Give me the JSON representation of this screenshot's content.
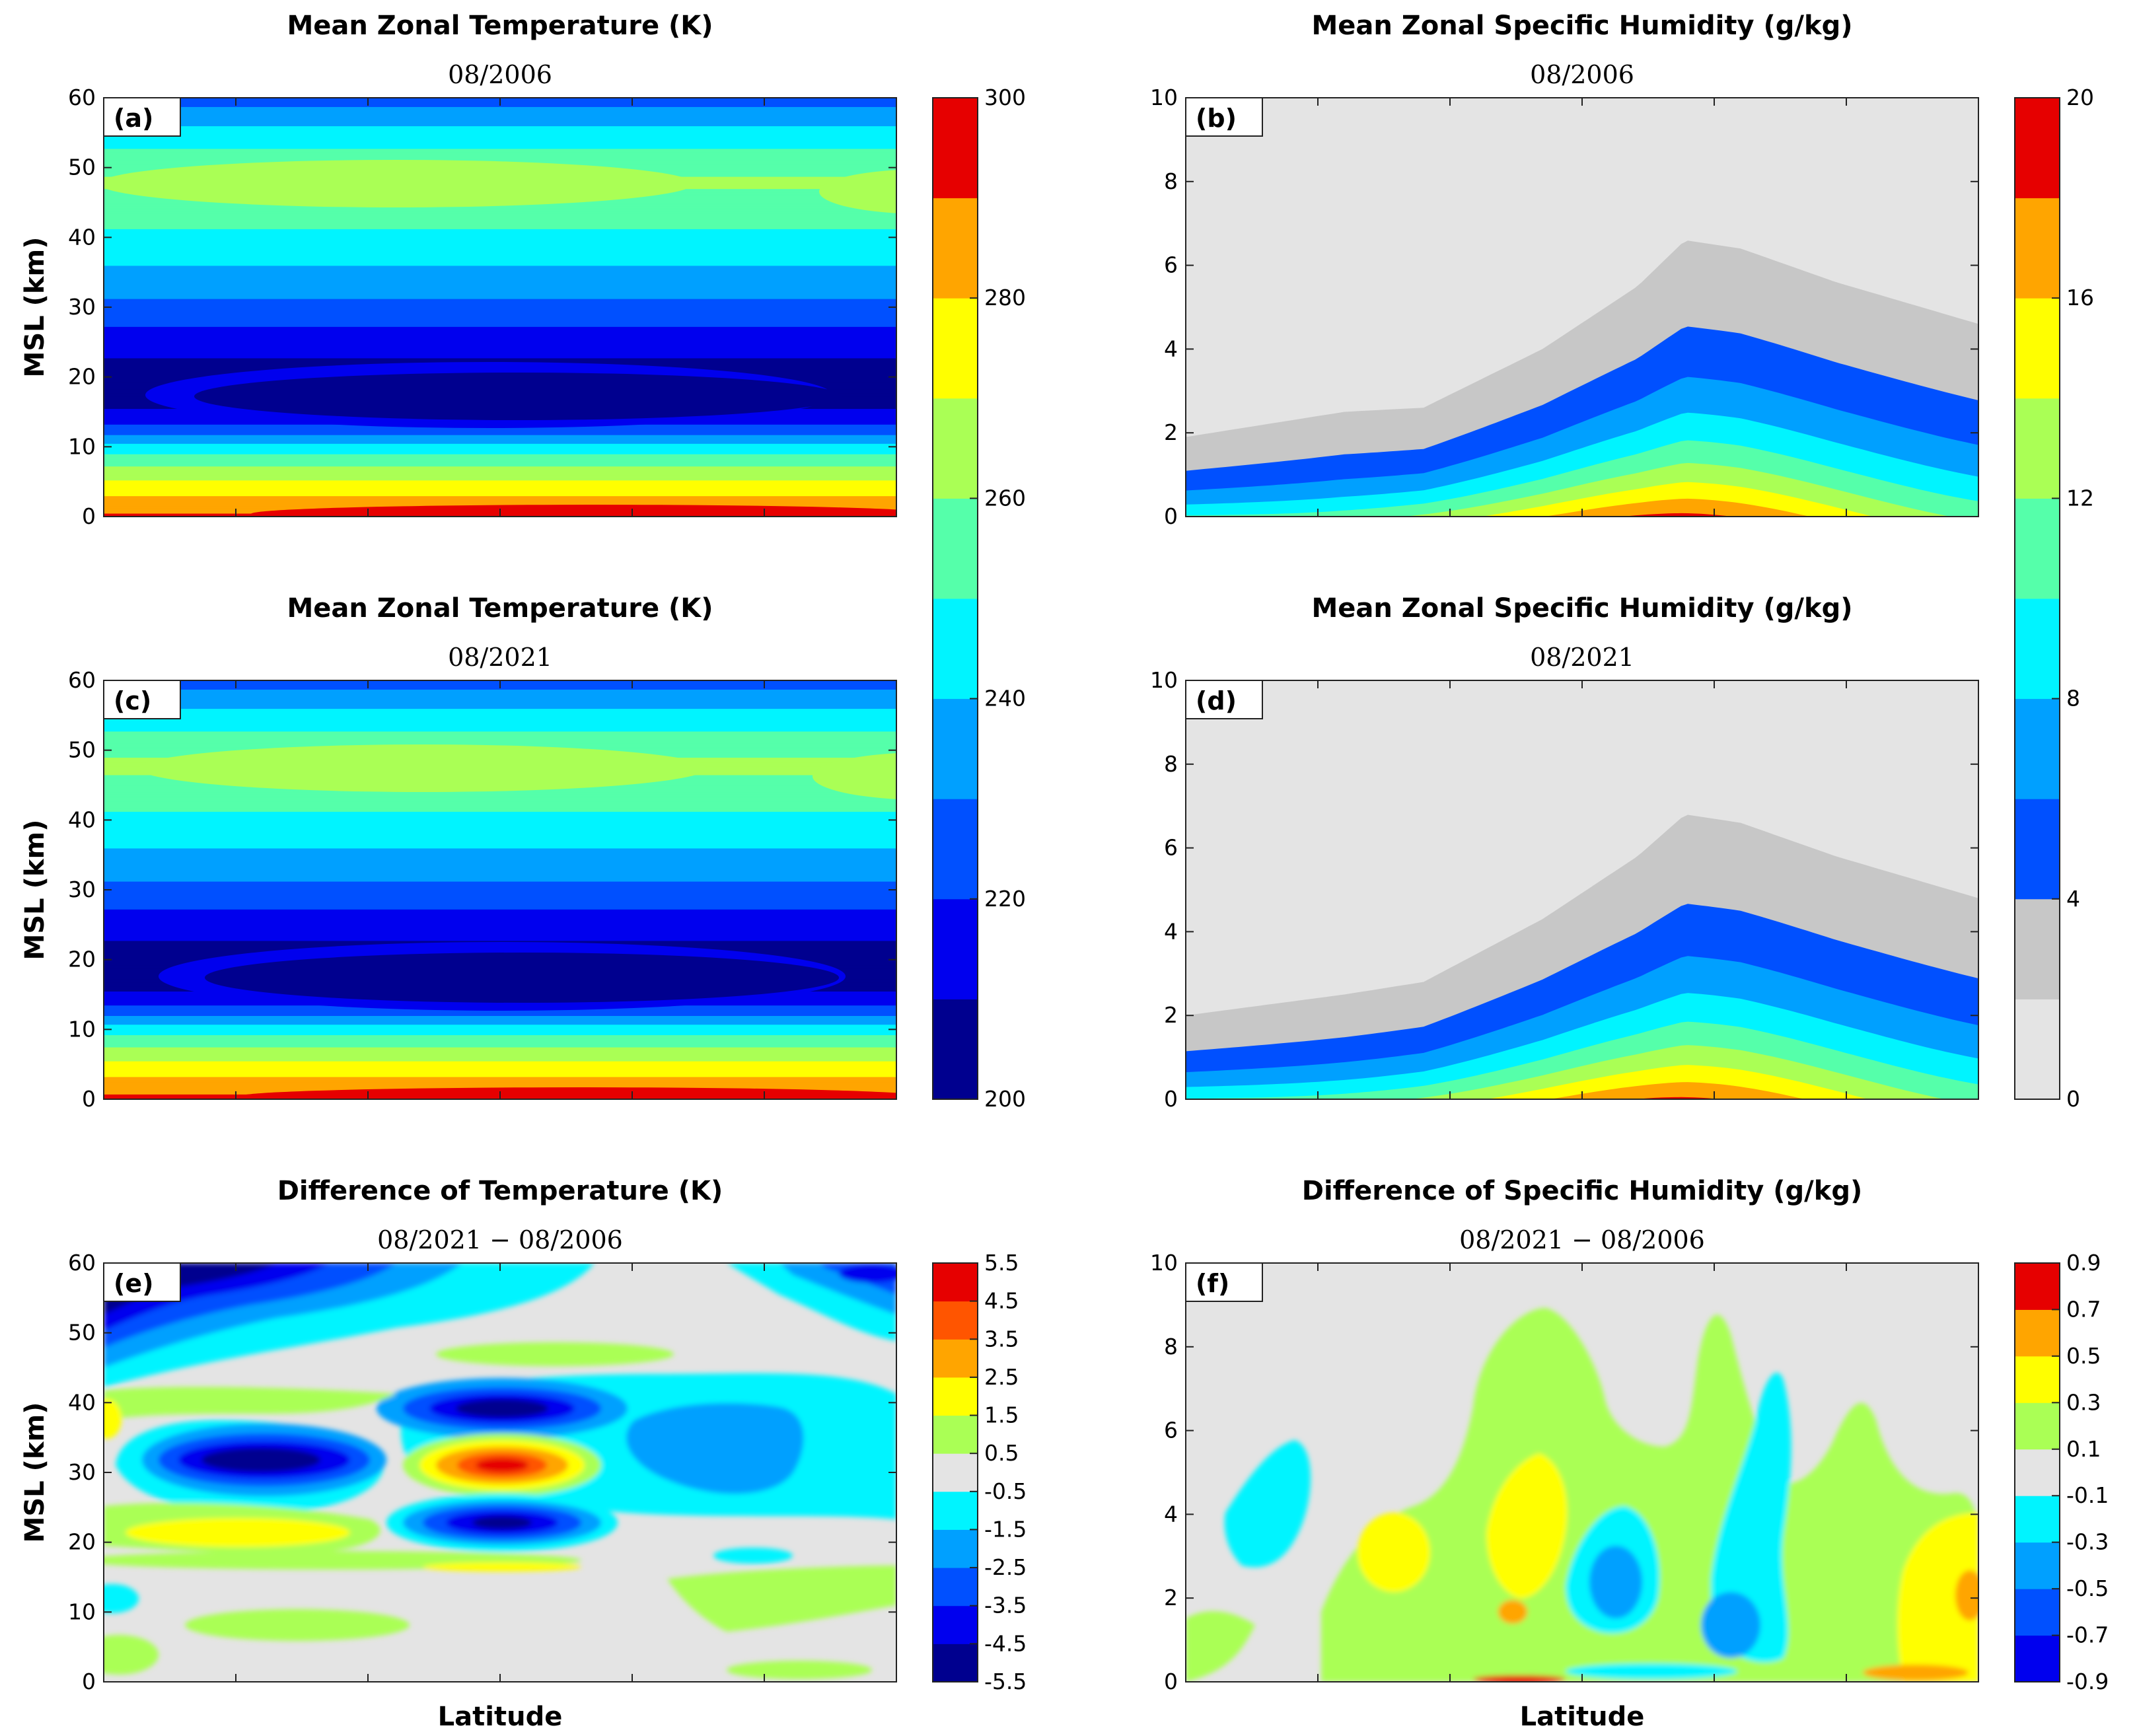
{
  "figure": {
    "xlabel": "Latitude"
  },
  "colors": {
    "temp": [
      "#00008f",
      "#0000ee",
      "#0050ff",
      "#00a0ff",
      "#00f4ff",
      "#55ffaa",
      "#aaff55",
      "#ffff00",
      "#ffa500",
      "#e60000"
    ],
    "humid": [
      "#e4e4e4",
      "#c7c7c7",
      "#0050ff",
      "#00a0ff",
      "#00f4ff",
      "#55ffaa",
      "#aaff55",
      "#ffff00",
      "#ffa500",
      "#e60000"
    ],
    "diff": [
      "#00008f",
      "#0000ee",
      "#0050ff",
      "#00a0ff",
      "#00f4ff",
      "#e4e4e4",
      "#aaff55",
      "#ffff00",
      "#ffa500",
      "#ff5500",
      "#e60000"
    ]
  },
  "colorbars": {
    "temperature": {
      "ticks": [
        "300",
        "280",
        "260",
        "240",
        "220",
        "200"
      ]
    },
    "humidity": {
      "ticks": [
        "20",
        "16",
        "12",
        "8",
        "4",
        "0"
      ]
    },
    "temp_diff": {
      "ticks": [
        "5.5",
        "4.5",
        "3.5",
        "2.5",
        "1.5",
        "0.5",
        "-0.5",
        "-1.5",
        "-2.5",
        "-3.5",
        "-4.5",
        "-5.5"
      ]
    },
    "humid_diff": {
      "ticks": [
        "0.9",
        "0.7",
        "0.5",
        "0.3",
        "0.1",
        "-0.1",
        "-0.3",
        "-0.5",
        "-0.7",
        "-0.9"
      ]
    }
  },
  "chart_data": [
    {
      "type": "heatmap",
      "id": "a",
      "label": "(a)",
      "title": "Mean Zonal Temperature (K)",
      "subtitle": "08/2006",
      "xlabel": "",
      "ylabel": "MSL (km)",
      "ylim": [
        0,
        60
      ],
      "yticks": [
        "0",
        "10",
        "20",
        "30",
        "40",
        "50",
        "60"
      ],
      "clim": [
        200,
        300
      ],
      "levels": [
        200,
        210,
        220,
        230,
        240,
        250,
        260,
        270,
        280,
        290,
        300
      ],
      "profile_km": [
        [
          0,
          292
        ],
        [
          2,
          285
        ],
        [
          4,
          276
        ],
        [
          6,
          266
        ],
        [
          8,
          256
        ],
        [
          10,
          244
        ],
        [
          12,
          228
        ],
        [
          14,
          216
        ],
        [
          17,
          204
        ],
        [
          20,
          206
        ],
        [
          24,
          212
        ],
        [
          28,
          222
        ],
        [
          32,
          232
        ],
        [
          36,
          240
        ],
        [
          40,
          248
        ],
        [
          44,
          254
        ],
        [
          48,
          262
        ],
        [
          52,
          252
        ],
        [
          56,
          240
        ],
        [
          60,
          226
        ]
      ]
    },
    {
      "type": "heatmap",
      "id": "b",
      "label": "(b)",
      "title": "Mean Zonal Specific Humidity (g/kg)",
      "subtitle": "08/2006",
      "xlabel": "",
      "ylabel": "",
      "ylim": [
        0,
        10
      ],
      "yticks": [
        "0",
        "2",
        "4",
        "6",
        "8",
        "10"
      ],
      "clim": [
        0,
        20
      ],
      "levels": [
        0,
        2,
        4,
        6,
        8,
        10,
        12,
        14,
        16,
        18,
        20
      ],
      "surface_humidity_g_per_kg": 18.5,
      "moist_top_km": [
        [
          0,
          1.9
        ],
        [
          0.2,
          2.5
        ],
        [
          0.3,
          2.6
        ],
        [
          0.45,
          4
        ],
        [
          0.57,
          5.5
        ],
        [
          0.63,
          6.6
        ],
        [
          0.7,
          6.4
        ],
        [
          0.82,
          5.6
        ],
        [
          1,
          4.6
        ]
      ]
    },
    {
      "type": "heatmap",
      "id": "c",
      "label": "(c)",
      "title": "Mean Zonal Temperature (K)",
      "subtitle": "08/2021",
      "xlabel": "",
      "ylabel": "MSL (km)",
      "ylim": [
        0,
        60
      ],
      "yticks": [
        "0",
        "10",
        "20",
        "30",
        "40",
        "50",
        "60"
      ],
      "clim": [
        200,
        300
      ],
      "levels": [
        200,
        210,
        220,
        230,
        240,
        250,
        260,
        270,
        280,
        290,
        300
      ],
      "profile_km": [
        [
          0,
          293
        ],
        [
          2,
          286
        ],
        [
          4,
          277
        ],
        [
          6,
          267
        ],
        [
          8,
          257
        ],
        [
          10,
          245
        ],
        [
          12,
          229
        ],
        [
          14,
          216
        ],
        [
          17,
          204
        ],
        [
          20,
          205
        ],
        [
          24,
          212
        ],
        [
          28,
          222
        ],
        [
          32,
          232
        ],
        [
          36,
          240
        ],
        [
          40,
          248
        ],
        [
          44,
          255
        ],
        [
          48,
          263
        ],
        [
          52,
          252
        ],
        [
          56,
          240
        ],
        [
          60,
          226
        ]
      ]
    },
    {
      "type": "heatmap",
      "id": "d",
      "label": "(d)",
      "title": "Mean Zonal Specific Humidity (g/kg)",
      "subtitle": "08/2021",
      "xlabel": "",
      "ylabel": "",
      "ylim": [
        0,
        10
      ],
      "yticks": [
        "0",
        "2",
        "4",
        "6",
        "8",
        "10"
      ],
      "clim": [
        0,
        20
      ],
      "levels": [
        0,
        2,
        4,
        6,
        8,
        10,
        12,
        14,
        16,
        18,
        20
      ],
      "surface_humidity_g_per_kg": 18.3,
      "moist_top_km": [
        [
          0,
          2
        ],
        [
          0.2,
          2.5
        ],
        [
          0.3,
          2.8
        ],
        [
          0.45,
          4.3
        ],
        [
          0.57,
          5.8
        ],
        [
          0.63,
          6.8
        ],
        [
          0.7,
          6.6
        ],
        [
          0.82,
          5.8
        ],
        [
          1,
          4.8
        ]
      ]
    },
    {
      "type": "heatmap",
      "id": "e",
      "label": "(e)",
      "title": "Difference of Temperature (K)",
      "subtitle": "08/2021 − 08/2006",
      "xlabel": "Latitude",
      "ylabel": "MSL (km)",
      "ylim": [
        0,
        60
      ],
      "yticks": [
        "0",
        "10",
        "20",
        "30",
        "40",
        "50",
        "60"
      ],
      "clim": [
        -5.5,
        5.5
      ],
      "levels": [
        -5.5,
        -4.5,
        -3.5,
        -2.5,
        -1.5,
        -0.5,
        0.5,
        1.5,
        2.5,
        3.5,
        4.5,
        5.5
      ],
      "features": [
        {
          "x": 0.08,
          "km": 55,
          "value": -5.0
        },
        {
          "x": 0.22,
          "km": 32,
          "value": -4.8
        },
        {
          "x": 0.5,
          "km": 38.5,
          "value": -4.0
        },
        {
          "x": 0.5,
          "km": 31,
          "value": 4.0
        },
        {
          "x": 0.5,
          "km": 23,
          "value": -4.0
        },
        {
          "x": 0.16,
          "km": 21,
          "value": 1.6
        },
        {
          "x": 0.83,
          "km": 33,
          "value": -2.4
        },
        {
          "x": 0.5,
          "km": 50,
          "value": 0.8
        }
      ]
    },
    {
      "type": "heatmap",
      "id": "f",
      "label": "(f)",
      "title": "Difference of Specific Humidity (g/kg)",
      "subtitle": "08/2021 − 08/2006",
      "xlabel": "Latitude",
      "ylabel": "",
      "ylim": [
        0,
        10
      ],
      "yticks": [
        "0",
        "2",
        "4",
        "6",
        "8",
        "10"
      ],
      "clim": [
        -0.9,
        0.9
      ],
      "levels": [
        -0.9,
        -0.7,
        -0.5,
        -0.3,
        -0.1,
        0.1,
        0.3,
        0.5,
        0.7,
        0.9
      ],
      "features": [
        {
          "x": 0.41,
          "km": 3.0,
          "value": 0.42
        },
        {
          "x": 0.52,
          "km": 2.3,
          "value": -0.5
        },
        {
          "x": 0.7,
          "km": 2.6,
          "value": -0.3
        },
        {
          "x": 0.97,
          "km": 2.2,
          "value": 0.55
        },
        {
          "x": 0.24,
          "km": 2.3,
          "value": 0.35
        },
        {
          "x": 0.1,
          "km": 3.0,
          "value": -0.2
        }
      ]
    }
  ]
}
